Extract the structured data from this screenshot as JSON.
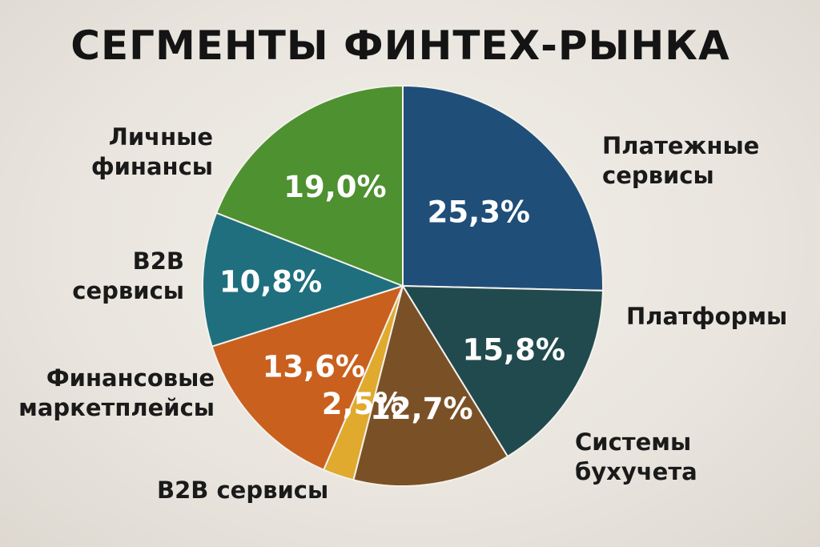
{
  "chart_data": {
    "type": "pie",
    "title": "СЕГМЕНТЫ ФИНТЕХ-РЫНКА",
    "slices": [
      {
        "label": "Платежные сервисы",
        "value": 25.3,
        "display": "25,3%",
        "color": "#1f4e79"
      },
      {
        "label": "Платформы",
        "value": 15.8,
        "display": "15,8%",
        "color": "#214a4e"
      },
      {
        "label": "Системы бухучета",
        "value": 12.7,
        "display": "12,7%",
        "color": "#7a5127"
      },
      {
        "label": "B2B сервисы",
        "value": 2.5,
        "display": "2,5%",
        "color": "#e0aa2e"
      },
      {
        "label": "Финансовые маркетплейсы",
        "value": 13.6,
        "display": "13,6%",
        "color": "#c9601e"
      },
      {
        "label": "B2B сервисы",
        "value": 10.8,
        "display": "10,8%",
        "color": "#1f6f7e"
      },
      {
        "label": "Личные финансы",
        "value": 19.0,
        "display": "19,0%",
        "color": "#4e9130"
      }
    ],
    "legend": "none"
  }
}
